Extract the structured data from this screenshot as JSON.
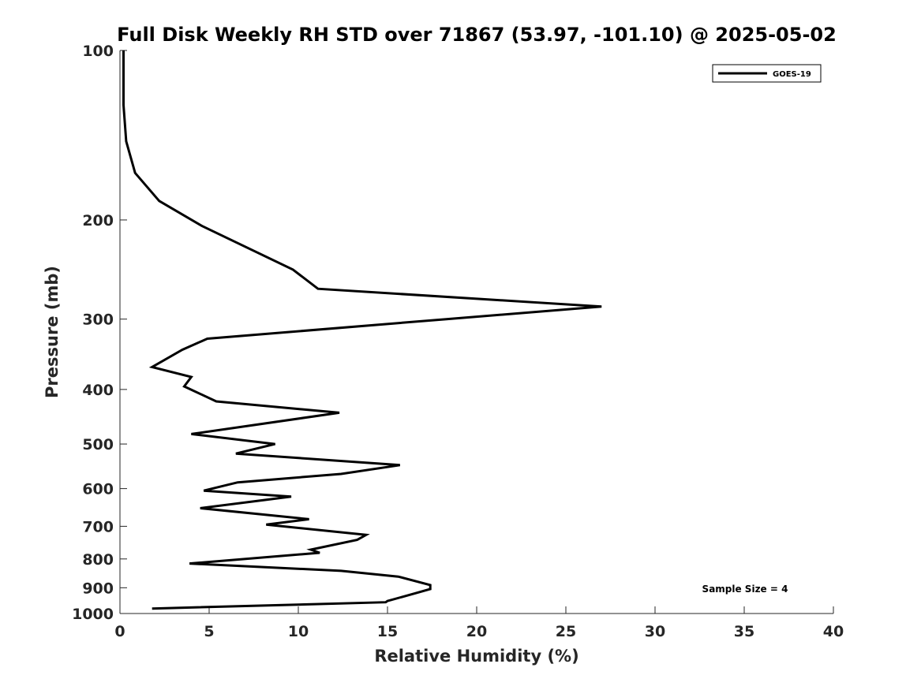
{
  "chart_data": {
    "type": "line",
    "title": "Full Disk Weekly RH STD over 71867 (53.97, -101.10) @ 2025-05-02",
    "xlabel": "Relative Humidity (%)",
    "ylabel": "Pressure (mb)",
    "xlim": [
      0,
      40
    ],
    "ylim": [
      100,
      1000
    ],
    "y_scale": "log",
    "y_inverted": true,
    "grid": false,
    "legend_position": "top-right",
    "x_ticks": [
      0,
      5,
      10,
      15,
      20,
      25,
      30,
      35,
      40
    ],
    "y_ticks": [
      100,
      200,
      300,
      400,
      500,
      600,
      700,
      800,
      900,
      1000
    ],
    "series": [
      {
        "name": "GOES-19",
        "color": "#000000",
        "points": [
          [
            0.2,
            100
          ],
          [
            0.2,
            115
          ],
          [
            0.2,
            125
          ],
          [
            0.35,
            145
          ],
          [
            0.85,
            165
          ],
          [
            2.2,
            185
          ],
          [
            4.6,
            205
          ],
          [
            9.7,
            245
          ],
          [
            11.1,
            265
          ],
          [
            27.0,
            285
          ],
          [
            18.3,
            300
          ],
          [
            4.9,
            325
          ],
          [
            3.5,
            340
          ],
          [
            1.8,
            365
          ],
          [
            4.0,
            380
          ],
          [
            3.6,
            395
          ],
          [
            5.4,
            420
          ],
          [
            12.3,
            440
          ],
          [
            4.0,
            480
          ],
          [
            8.7,
            500
          ],
          [
            6.5,
            520
          ],
          [
            15.7,
            545
          ],
          [
            12.4,
            565
          ],
          [
            6.6,
            585
          ],
          [
            4.7,
            605
          ],
          [
            9.6,
            620
          ],
          [
            4.5,
            650
          ],
          [
            10.6,
            680
          ],
          [
            8.2,
            695
          ],
          [
            13.8,
            725
          ],
          [
            13.3,
            740
          ],
          [
            10.7,
            770
          ],
          [
            11.2,
            780
          ],
          [
            3.9,
            815
          ],
          [
            12.4,
            840
          ],
          [
            15.6,
            860
          ],
          [
            17.4,
            890
          ],
          [
            17.4,
            905
          ],
          [
            16.6,
            920
          ],
          [
            15.0,
            950
          ],
          [
            14.9,
            955
          ],
          [
            1.8,
            980
          ]
        ]
      }
    ],
    "annotations": [
      "Sample Size = 4"
    ]
  }
}
